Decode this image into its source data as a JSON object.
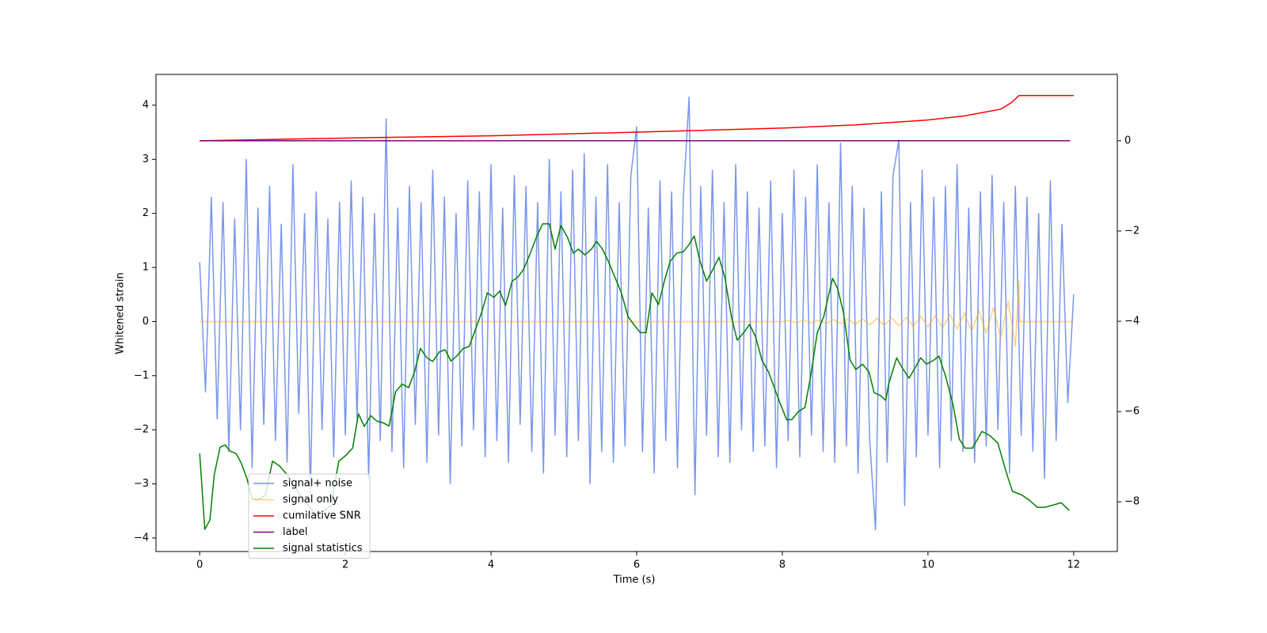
{
  "chart_data": {
    "type": "line",
    "xlabel": "Time (s)",
    "ylabel": "Whitened strain",
    "xlim": [
      -0.6,
      12.6
    ],
    "xticks": [
      0,
      2,
      4,
      6,
      8,
      10,
      12
    ],
    "ylim": [
      -4.25,
      4.57
    ],
    "yticks": [
      {
        "value": -4,
        "label": "−4"
      },
      {
        "value": -3,
        "label": "−3"
      },
      {
        "value": -2,
        "label": "−2"
      },
      {
        "value": -1,
        "label": "−1"
      },
      0,
      1,
      2,
      3,
      4
    ],
    "y2lim": [
      -9.1,
      1.47
    ],
    "y2ticks": [
      {
        "value": -8,
        "label": "−8"
      },
      {
        "value": -6,
        "label": "−6"
      },
      {
        "value": -4,
        "label": "−4"
      },
      {
        "value": -2,
        "label": "−2"
      },
      0
    ],
    "legend": true,
    "series": [
      {
        "name": "signal+ noise",
        "color": "#4169e1",
        "alpha": 0.7,
        "axis": "y",
        "x": [
          0,
          0.08,
          0.16,
          0.24,
          0.32,
          0.4,
          0.48,
          0.56,
          0.64,
          0.72,
          0.8,
          0.88,
          0.96,
          1.04,
          1.12,
          1.2,
          1.28,
          1.36,
          1.44,
          1.52,
          1.6,
          1.68,
          1.76,
          1.84,
          1.92,
          2,
          2.08,
          2.16,
          2.24,
          2.32,
          2.4,
          2.48,
          2.56,
          2.64,
          2.72,
          2.8,
          2.88,
          2.96,
          3.04,
          3.12,
          3.2,
          3.28,
          3.36,
          3.44,
          3.52,
          3.6,
          3.68,
          3.76,
          3.84,
          3.92,
          4,
          4.08,
          4.16,
          4.24,
          4.32,
          4.4,
          4.48,
          4.56,
          4.64,
          4.72,
          4.8,
          4.88,
          4.96,
          5.04,
          5.12,
          5.2,
          5.28,
          5.36,
          5.44,
          5.52,
          5.6,
          5.68,
          5.76,
          5.84,
          5.92,
          6,
          6.08,
          6.16,
          6.24,
          6.32,
          6.4,
          6.48,
          6.56,
          6.64,
          6.72,
          6.8,
          6.88,
          6.96,
          7.04,
          7.12,
          7.2,
          7.28,
          7.36,
          7.44,
          7.52,
          7.6,
          7.68,
          7.76,
          7.84,
          7.92,
          8,
          8.08,
          8.16,
          8.24,
          8.32,
          8.4,
          8.48,
          8.56,
          8.64,
          8.72,
          8.8,
          8.88,
          8.96,
          9.04,
          9.12,
          9.2,
          9.28,
          9.36,
          9.44,
          9.52,
          9.6,
          9.68,
          9.76,
          9.84,
          9.92,
          10,
          10.08,
          10.16,
          10.24,
          10.32,
          10.4,
          10.48,
          10.56,
          10.64,
          10.72,
          10.8,
          10.88,
          10.96,
          11.04,
          11.12,
          11.2,
          11.28,
          11.36,
          11.44,
          11.52,
          11.6,
          11.68,
          11.76,
          11.84,
          11.92,
          12
        ],
        "values": [
          1.1,
          -1.3,
          2.3,
          -1.8,
          2.2,
          -2.4,
          1.9,
          -2.0,
          3.0,
          -2.7,
          2.1,
          -1.9,
          2.5,
          -2.2,
          1.8,
          -2.6,
          2.9,
          -1.7,
          2.0,
          -3.2,
          2.4,
          -2.0,
          1.9,
          -2.5,
          2.2,
          -2.1,
          2.6,
          -1.8,
          2.3,
          -2.9,
          2.0,
          -2.2,
          3.75,
          -2.4,
          2.1,
          -2.7,
          2.5,
          -1.9,
          2.2,
          -2.6,
          2.8,
          -2.1,
          2.3,
          -3.0,
          2.0,
          -2.3,
          2.6,
          -2.0,
          2.4,
          -2.5,
          2.9,
          -2.2,
          2.1,
          -2.6,
          2.7,
          -1.9,
          2.5,
          -2.4,
          2.2,
          -2.8,
          3.0,
          -2.1,
          2.4,
          -2.5,
          2.8,
          -2.2,
          3.1,
          -3.0,
          2.3,
          -2.4,
          2.9,
          -2.6,
          2.2,
          -2.3,
          2.7,
          3.6,
          -2.4,
          2.1,
          -2.8,
          2.6,
          -2.2,
          2.4,
          -2.7,
          2.3,
          4.15,
          -3.2,
          2.5,
          -2.1,
          2.8,
          -2.5,
          2.2,
          -2.6,
          2.9,
          -2.0,
          2.4,
          -2.4,
          2.1,
          -2.3,
          2.6,
          -2.7,
          2.0,
          -2.2,
          2.8,
          -2.5,
          2.3,
          -2.1,
          2.9,
          -2.4,
          2.2,
          -2.6,
          3.3,
          -2.3,
          2.5,
          -2.8,
          2.1,
          -2.2,
          -3.85,
          2.4,
          -2.6,
          2.7,
          3.35,
          -3.4,
          2.2,
          -2.5,
          2.8,
          -2.1,
          2.3,
          -2.7,
          2.5,
          -2.2,
          2.9,
          -2.4,
          2.1,
          -2.6,
          2.4,
          -2.3,
          2.7,
          -2.0,
          2.2,
          -2.8,
          2.5,
          -2.1,
          2.3,
          -2.4,
          2.0,
          -2.9,
          2.6,
          -2.2,
          1.8,
          -1.5,
          0.5
        ]
      },
      {
        "name": "signal only",
        "color": "#ffa500",
        "alpha": 0.5,
        "axis": "y",
        "x": [
          0,
          8,
          8.1,
          8.2,
          8.3,
          8.4,
          8.5,
          8.6,
          8.7,
          8.8,
          8.9,
          9,
          9.1,
          9.2,
          9.3,
          9.4,
          9.5,
          9.6,
          9.7,
          9.8,
          9.9,
          10,
          10.1,
          10.2,
          10.3,
          10.4,
          10.5,
          10.6,
          10.7,
          10.8,
          10.9,
          11,
          11.1,
          11.2,
          11.25,
          11.26,
          12
        ],
        "values": [
          0,
          0,
          0.02,
          -0.02,
          0.03,
          -0.03,
          0.03,
          -0.04,
          0.04,
          -0.04,
          0.05,
          -0.05,
          0.05,
          -0.06,
          0.06,
          -0.07,
          0.07,
          -0.08,
          0.08,
          -0.09,
          0.1,
          -0.1,
          0.11,
          -0.12,
          0.13,
          -0.14,
          0.16,
          -0.18,
          0.2,
          -0.22,
          0.26,
          -0.3,
          0.38,
          -0.45,
          0.75,
          0,
          0
        ]
      },
      {
        "name": "cumilative SNR",
        "color": "#ff0000",
        "alpha": 1,
        "axis": "y2",
        "x": [
          0,
          2,
          4,
          6,
          8,
          9,
          10,
          10.5,
          11,
          11.15,
          11.25,
          12
        ],
        "values": [
          0,
          0.06,
          0.11,
          0.19,
          0.28,
          0.35,
          0.46,
          0.55,
          0.7,
          0.85,
          1.0,
          1.0
        ]
      },
      {
        "name": "label",
        "color": "#800080",
        "alpha": 1,
        "axis": "y2",
        "x": [
          0,
          11.95
        ],
        "values": [
          0,
          0
        ]
      },
      {
        "name": "signal statistics",
        "color": "#008000",
        "alpha": 1,
        "axis": "y2",
        "x": [
          0,
          0.07,
          0.14,
          0.2,
          0.28,
          0.35,
          0.42,
          0.5,
          0.57,
          0.65,
          0.72,
          0.8,
          0.9,
          1.0,
          1.1,
          1.2,
          1.4,
          1.6,
          1.8,
          1.91,
          2.0,
          2.1,
          2.18,
          2.26,
          2.35,
          2.43,
          2.52,
          2.6,
          2.69,
          2.78,
          2.87,
          2.95,
          3.03,
          3.12,
          3.2,
          3.29,
          3.37,
          3.45,
          3.53,
          3.62,
          3.7,
          3.78,
          3.87,
          3.95,
          4.04,
          4.12,
          4.2,
          4.29,
          4.37,
          4.45,
          4.54,
          4.63,
          4.71,
          4.8,
          4.88,
          4.96,
          5.05,
          5.13,
          5.2,
          5.29,
          5.38,
          5.45,
          5.53,
          5.61,
          5.7,
          5.79,
          5.88,
          5.96,
          6.05,
          6.13,
          6.21,
          6.3,
          6.38,
          6.46,
          6.55,
          6.64,
          6.71,
          6.79,
          6.87,
          6.96,
          7.05,
          7.13,
          7.21,
          7.3,
          7.38,
          7.47,
          7.55,
          7.63,
          7.72,
          7.81,
          7.9,
          7.97,
          8.06,
          8.13,
          8.22,
          8.31,
          8.39,
          8.48,
          8.57,
          8.63,
          8.69,
          8.76,
          8.84,
          8.93,
          9.01,
          9.1,
          9.19,
          9.26,
          9.35,
          9.42,
          9.46,
          9.57,
          9.65,
          9.74,
          9.82,
          9.9,
          9.98,
          10.08,
          10.15,
          10.24,
          10.34,
          10.43,
          10.51,
          10.61,
          10.74,
          10.85,
          10.96,
          11.07,
          11.16,
          11.28,
          11.39,
          11.5,
          11.61,
          11.72,
          11.83,
          11.94
        ],
        "values": [
          -6.93,
          -8.61,
          -8.4,
          -7.4,
          -6.79,
          -6.74,
          -6.88,
          -6.93,
          -7.14,
          -7.49,
          -7.93,
          -7.95,
          -7.86,
          -7.1,
          -7.21,
          -7.4,
          -7.9,
          -8.3,
          -8.1,
          -7.1,
          -6.98,
          -6.81,
          -6.05,
          -6.33,
          -6.09,
          -6.21,
          -6.25,
          -6.32,
          -5.56,
          -5.39,
          -5.47,
          -5.12,
          -4.6,
          -4.81,
          -4.89,
          -4.68,
          -4.63,
          -4.88,
          -4.77,
          -4.6,
          -4.56,
          -4.21,
          -3.81,
          -3.37,
          -3.47,
          -3.33,
          -3.65,
          -3.11,
          -3.02,
          -2.84,
          -2.49,
          -2.11,
          -1.84,
          -1.84,
          -2.4,
          -1.88,
          -2.14,
          -2.49,
          -2.4,
          -2.53,
          -2.4,
          -2.23,
          -2.4,
          -2.67,
          -3.02,
          -3.37,
          -3.89,
          -4.07,
          -4.25,
          -4.25,
          -3.37,
          -3.63,
          -3.11,
          -2.67,
          -2.49,
          -2.46,
          -2.32,
          -2.11,
          -2.67,
          -3.11,
          -2.84,
          -2.58,
          -3.02,
          -3.89,
          -4.42,
          -4.25,
          -4.07,
          -4.33,
          -4.86,
          -5.12,
          -5.51,
          -5.82,
          -6.18,
          -6.18,
          -6.0,
          -5.91,
          -5.21,
          -4.25,
          -3.89,
          -3.46,
          -3.05,
          -3.28,
          -3.81,
          -4.86,
          -5.07,
          -4.95,
          -5.12,
          -5.58,
          -5.65,
          -5.75,
          -5.39,
          -4.81,
          -5.04,
          -5.26,
          -5.04,
          -4.81,
          -4.95,
          -4.86,
          -4.77,
          -5.21,
          -5.82,
          -6.61,
          -6.81,
          -6.81,
          -6.44,
          -6.53,
          -6.7,
          -7.32,
          -7.77,
          -7.84,
          -7.96,
          -8.12,
          -8.12,
          -8.07,
          -8.02,
          -8.19
        ]
      }
    ]
  }
}
